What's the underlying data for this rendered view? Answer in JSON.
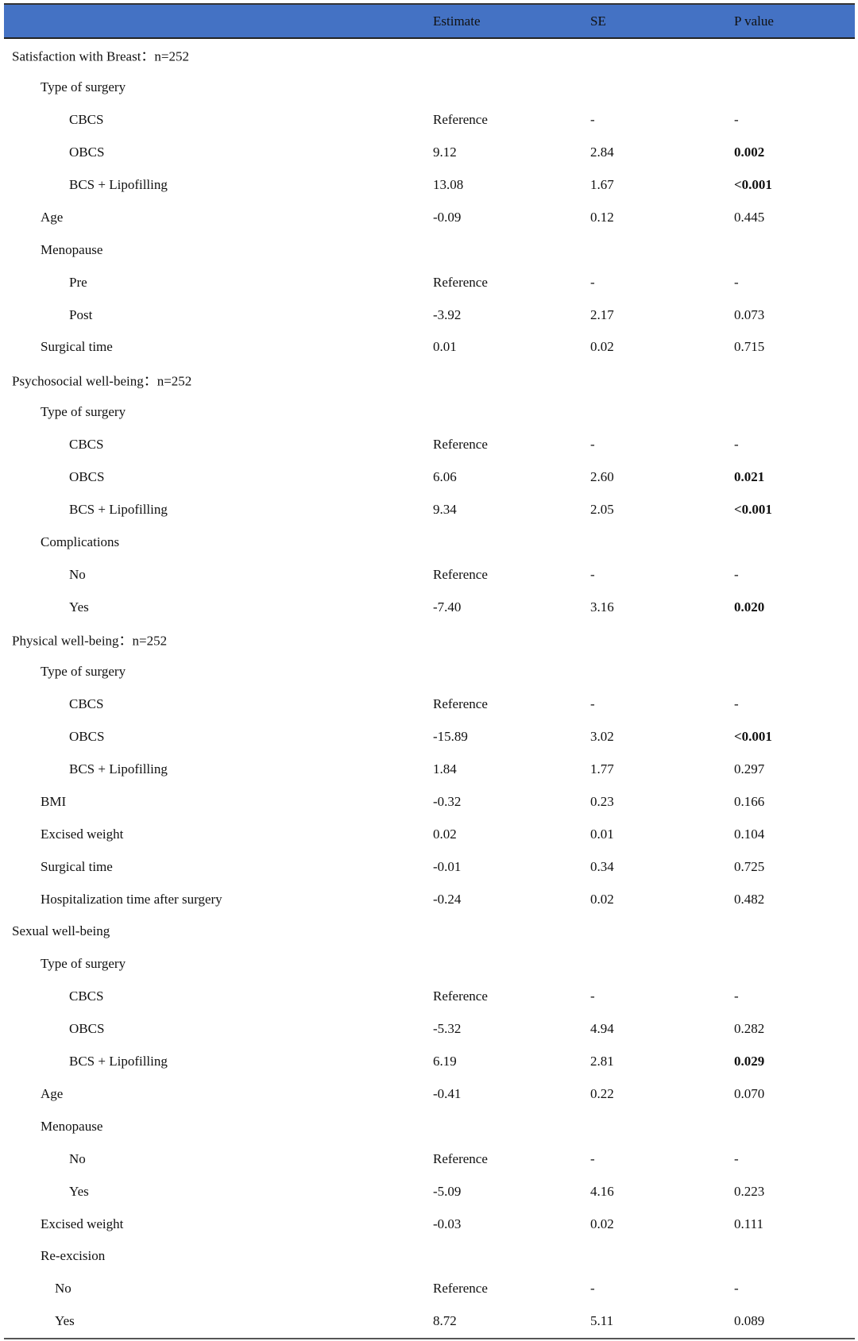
{
  "header": {
    "col0": "",
    "estimate": "Estimate",
    "se": "SE",
    "p": "P value"
  },
  "colors": {
    "header_bg": "#4472C4"
  },
  "rows": [
    {
      "label": "Satisfaction with Breast：n=252",
      "level": 0
    },
    {
      "label": "Type of surgery",
      "level": 1
    },
    {
      "label": "CBCS",
      "level": 2,
      "est": "Reference",
      "se": "-",
      "p": "-"
    },
    {
      "label": "OBCS",
      "level": 2,
      "est": "9.12",
      "se": "2.84",
      "p": "0.002",
      "bold": true
    },
    {
      "label": "BCS + Lipofilling",
      "level": 2,
      "est": "13.08",
      "se": "1.67",
      "p": "<0.001",
      "bold": true
    },
    {
      "label": "Age",
      "level": 1,
      "est": "-0.09",
      "se": "0.12",
      "p": "0.445"
    },
    {
      "label": "Menopause",
      "level": 1
    },
    {
      "label": "Pre",
      "level": 2,
      "est": "Reference",
      "se": "-",
      "p": "-"
    },
    {
      "label": "Post",
      "level": 2,
      "est": "-3.92",
      "se": "2.17",
      "p": "0.073"
    },
    {
      "label": "Surgical time",
      "level": 1,
      "est": "0.01",
      "se": "0.02",
      "p": "0.715"
    },
    {
      "label": "Psychosocial well-being：n=252",
      "level": 0
    },
    {
      "label": "Type of surgery",
      "level": 1
    },
    {
      "label": "CBCS",
      "level": 2,
      "est": "Reference",
      "se": "-",
      "p": "-"
    },
    {
      "label": "OBCS",
      "level": 2,
      "est": "6.06",
      "se": "2.60",
      "p": "0.021",
      "bold": true
    },
    {
      "label": "BCS + Lipofilling",
      "level": 2,
      "est": "9.34",
      "se": "2.05",
      "p": "<0.001",
      "bold": true
    },
    {
      "label": "Complications",
      "level": 1
    },
    {
      "label": "No",
      "level": 2,
      "est": "Reference",
      "se": "-",
      "p": "-"
    },
    {
      "label": "Yes",
      "level": 2,
      "est": "-7.40",
      "se": "3.16",
      "p": "0.020",
      "bold": true
    },
    {
      "label": "Physical well-being：n=252",
      "level": 0
    },
    {
      "label": "Type of surgery",
      "level": 1
    },
    {
      "label": "CBCS",
      "level": 2,
      "est": "Reference",
      "se": "-",
      "p": "-"
    },
    {
      "label": "OBCS",
      "level": 2,
      "est": "-15.89",
      "se": "3.02",
      "p": "<0.001",
      "bold": true
    },
    {
      "label": "BCS + Lipofilling",
      "level": 2,
      "est": "1.84",
      "se": "1.77",
      "p": "0.297"
    },
    {
      "label": "BMI",
      "level": 1,
      "est": "-0.32",
      "se": "0.23",
      "p": "0.166"
    },
    {
      "label": "Excised weight",
      "level": 1,
      "est": "0.02",
      "se": "0.01",
      "p": "0.104"
    },
    {
      "label": "Surgical time",
      "level": 1,
      "est": "-0.01",
      "se": "0.34",
      "p": "0.725"
    },
    {
      "label": "Hospitalization time after surgery",
      "level": 1,
      "est": "-0.24",
      "se": "0.02",
      "p": "0.482"
    },
    {
      "label": "Sexual well-being",
      "level": 0
    },
    {
      "label": "Type of surgery",
      "level": 1
    },
    {
      "label": "CBCS",
      "level": 2,
      "est": "Reference",
      "se": "-",
      "p": "-"
    },
    {
      "label": "OBCS",
      "level": 2,
      "est": "-5.32",
      "se": "4.94",
      "p": "0.282"
    },
    {
      "label": "BCS + Lipofilling",
      "level": 2,
      "est": "6.19",
      "se": "2.81",
      "p": "0.029",
      "bold": true
    },
    {
      "label": "Age",
      "level": 1,
      "est": "-0.41",
      "se": "0.22",
      "p": "0.070"
    },
    {
      "label": "Menopause",
      "level": 1
    },
    {
      "label": "No",
      "level": 2,
      "est": "Reference",
      "se": "-",
      "p": "-"
    },
    {
      "label": "Yes",
      "level": 2,
      "est": "-5.09",
      "se": "4.16",
      "p": "0.223"
    },
    {
      "label": "Excised weight",
      "level": 1,
      "est": "-0.03",
      "se": "0.02",
      "p": "0.111"
    },
    {
      "label": "Re-excision",
      "level": 1
    },
    {
      "label": "No",
      "level": 3,
      "est": "Reference",
      "se": "-",
      "p": "-"
    },
    {
      "label": "Yes",
      "level": 3,
      "est": "8.72",
      "se": "5.11",
      "p": "0.089"
    }
  ]
}
